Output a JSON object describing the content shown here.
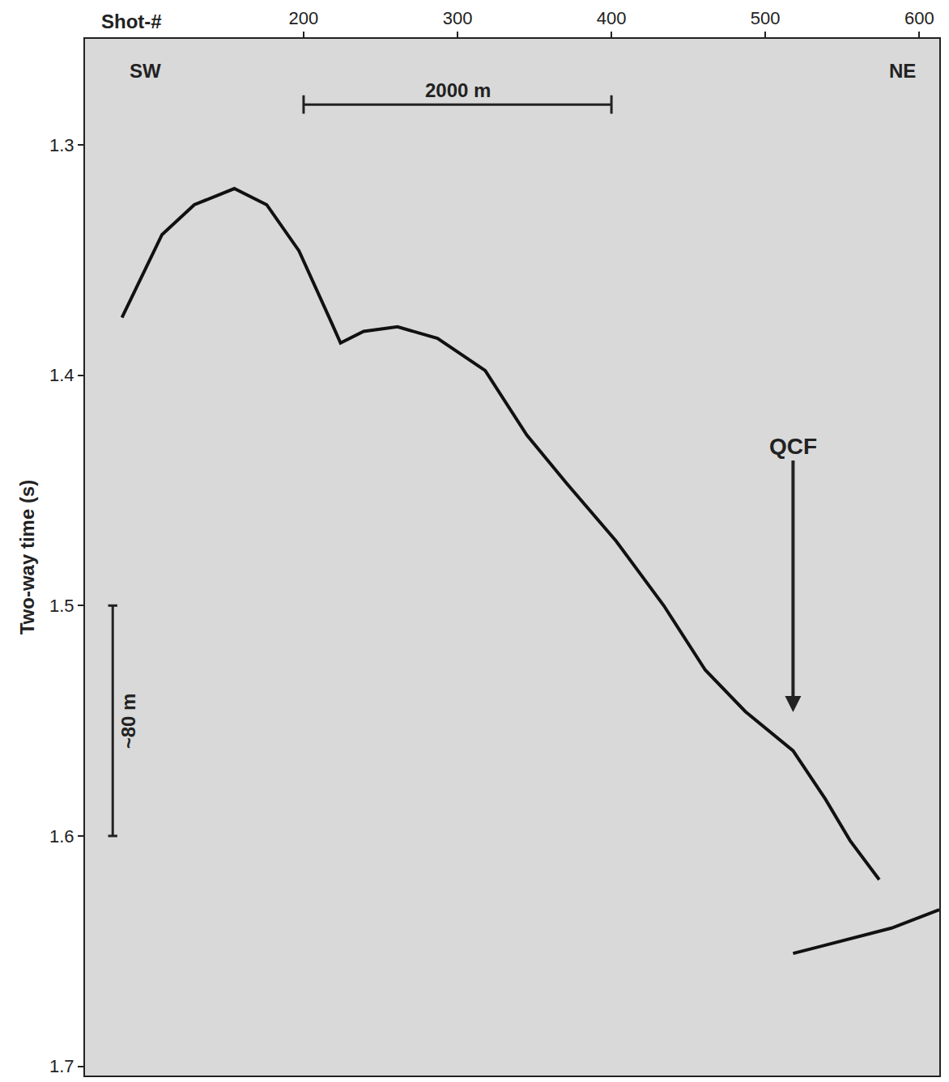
{
  "chart_data": {
    "type": "line",
    "xlabel": "Shot-#",
    "ylabel": "Two-way time (s)",
    "xlim": [
      58,
      613
    ],
    "xticks": [
      200,
      300,
      400,
      500,
      600
    ],
    "ylim": [
      1.704,
      1.254
    ],
    "yticks": [
      1.3,
      1.4,
      1.5,
      1.6,
      1.7
    ],
    "grid": false,
    "series": [
      {
        "color": "#111111",
        "x": [
          82,
          108,
          129,
          155,
          176,
          197,
          218,
          224,
          239,
          261,
          287,
          318,
          345,
          371,
          403,
          434,
          461,
          487,
          518,
          539,
          555,
          574
        ],
        "values": [
          1.375,
          1.339,
          1.326,
          1.319,
          1.326,
          1.346,
          1.377,
          1.386,
          1.381,
          1.379,
          1.384,
          1.398,
          1.426,
          1.447,
          1.472,
          1.5,
          1.528,
          1.546,
          1.563,
          1.584,
          1.602,
          1.619
        ]
      },
      {
        "color": "#111111",
        "x": [
          518,
          582,
          613
        ],
        "values": [
          1.651,
          1.64,
          1.632
        ]
      }
    ],
    "annotations": [
      {
        "text": "SW",
        "x": 97,
        "y": 1.268
      },
      {
        "text": "NE",
        "x": 589,
        "y": 1.268
      },
      {
        "text": "QCF",
        "x": 518,
        "y": 1.547,
        "text_y": 1.437
      }
    ],
    "scale_bars": [
      {
        "text": "2000 m",
        "x": [
          200,
          400
        ],
        "y": 1.2825
      },
      {
        "text": "~80 m",
        "x": 76,
        "y": [
          1.5,
          1.6
        ]
      }
    ]
  }
}
